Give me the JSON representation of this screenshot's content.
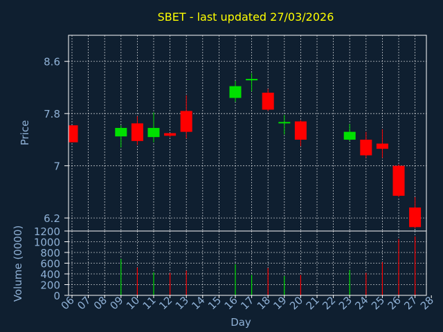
{
  "chart_data": [
    {
      "type": "candlestick",
      "title": "SBET - last updated 27/03/2026",
      "ylabel": "Price",
      "ylim": [
        6.0,
        9.0
      ],
      "yticks": [
        "8.6",
        "7.8",
        "7",
        "6.2"
      ],
      "ytick_values": [
        8.6,
        7.8,
        7.0,
        6.2
      ],
      "grid": true,
      "colors": {
        "up": "#00e000",
        "down": "#ff0000",
        "title": "#ffff00",
        "axis_text": "#8fb1d6",
        "background": "#0f1f30",
        "grid": "#ffffff"
      },
      "candles": [
        {
          "day": "06",
          "open": 7.62,
          "close": 7.36,
          "high": 7.62,
          "low": 7.36
        },
        {
          "day": "09",
          "open": 7.45,
          "close": 7.58,
          "high": 7.62,
          "low": 7.28
        },
        {
          "day": "10",
          "open": 7.65,
          "close": 7.38,
          "high": 7.76,
          "low": 7.32
        },
        {
          "day": "11",
          "open": 7.44,
          "close": 7.58,
          "high": 7.82,
          "low": 7.36
        },
        {
          "day": "12",
          "open": 7.5,
          "close": 7.46,
          "high": 7.5,
          "low": 7.44
        },
        {
          "day": "13",
          "open": 7.84,
          "close": 7.52,
          "high": 8.08,
          "low": 7.42
        },
        {
          "day": "16",
          "open": 8.04,
          "close": 8.22,
          "high": 8.3,
          "low": 7.98
        },
        {
          "day": "17",
          "open": 8.32,
          "close": 8.32,
          "high": 8.42,
          "low": 8.14
        },
        {
          "day": "18",
          "open": 8.12,
          "close": 7.86,
          "high": 8.18,
          "low": 7.84
        },
        {
          "day": "19",
          "open": 7.66,
          "close": 7.66,
          "high": 7.78,
          "low": 7.48
        },
        {
          "day": "20",
          "open": 7.68,
          "close": 7.4,
          "high": 7.7,
          "low": 7.3
        },
        {
          "day": "23",
          "open": 7.4,
          "close": 7.52,
          "high": 7.64,
          "low": 7.38
        },
        {
          "day": "24",
          "open": 7.4,
          "close": 7.16,
          "high": 7.52,
          "low": 7.12
        },
        {
          "day": "25",
          "open": 7.34,
          "close": 7.26,
          "high": 7.56,
          "low": 7.12
        },
        {
          "day": "26",
          "open": 7.0,
          "close": 6.54,
          "high": 7.02,
          "low": 6.52
        },
        {
          "day": "27",
          "open": 6.36,
          "close": 6.06,
          "high": 6.52,
          "low": 6.04
        }
      ]
    },
    {
      "type": "bar",
      "ylabel": "Volume (0000)",
      "xlabel": "Day",
      "ylim": [
        0,
        1200
      ],
      "yticks": [
        "1200",
        "1000",
        "800",
        "600",
        "400",
        "200",
        "0"
      ],
      "ytick_values": [
        1200,
        1000,
        800,
        600,
        400,
        200,
        0
      ],
      "categories": [
        "06",
        "07",
        "08",
        "09",
        "10",
        "11",
        "12",
        "13",
        "14",
        "15",
        "16",
        "17",
        "18",
        "19",
        "20",
        "21",
        "22",
        "23",
        "24",
        "25",
        "26",
        "27",
        "28"
      ],
      "volumes": [
        {
          "day": "09",
          "value": 680,
          "direction": "up"
        },
        {
          "day": "10",
          "value": 520,
          "direction": "down"
        },
        {
          "day": "11",
          "value": 430,
          "direction": "up"
        },
        {
          "day": "12",
          "value": 420,
          "direction": "down"
        },
        {
          "day": "13",
          "value": 460,
          "direction": "down"
        },
        {
          "day": "16",
          "value": 580,
          "direction": "up"
        },
        {
          "day": "17",
          "value": 380,
          "direction": "up"
        },
        {
          "day": "18",
          "value": 510,
          "direction": "down"
        },
        {
          "day": "19",
          "value": 360,
          "direction": "up"
        },
        {
          "day": "20",
          "value": 380,
          "direction": "down"
        },
        {
          "day": "23",
          "value": 470,
          "direction": "up"
        },
        {
          "day": "24",
          "value": 420,
          "direction": "down"
        },
        {
          "day": "25",
          "value": 620,
          "direction": "down"
        },
        {
          "day": "26",
          "value": 1050,
          "direction": "down"
        },
        {
          "day": "27",
          "value": 1100,
          "direction": "down"
        }
      ]
    }
  ]
}
